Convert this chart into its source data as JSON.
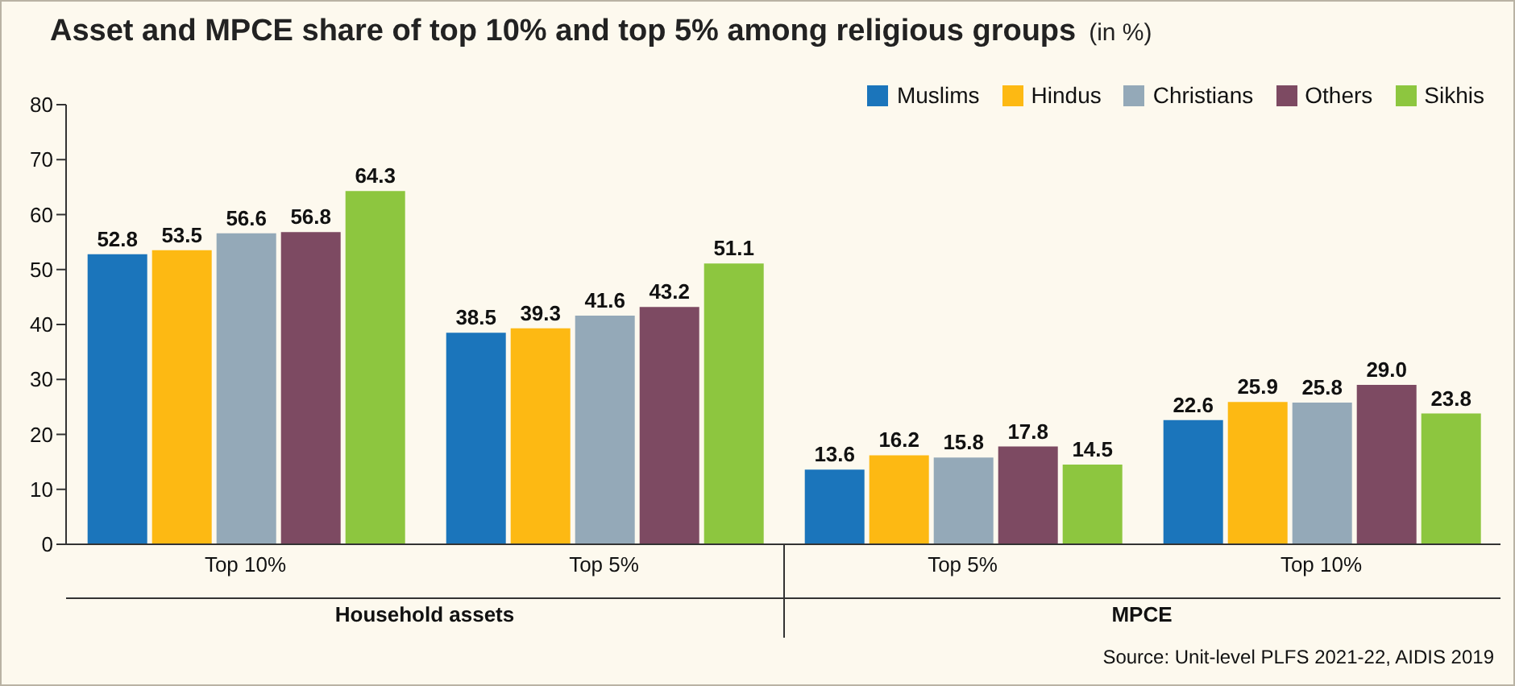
{
  "chart_data": {
    "type": "bar",
    "title": "Asset and MPCE share of top 10% and top 5% among religious groups",
    "subtitle": "(in %)",
    "categories": [
      "Top 10%",
      "Top 5%",
      "Top 5%",
      "Top 10%"
    ],
    "series": [
      {
        "name": "Muslims",
        "color": "#1b75bb",
        "values": [
          52.8,
          38.5,
          13.6,
          22.6
        ],
        "value_labels": [
          "52.8",
          "38.5",
          "13.6",
          "22.6"
        ]
      },
      {
        "name": "Hindus",
        "color": "#fdb913",
        "values": [
          53.5,
          39.3,
          16.2,
          25.9
        ],
        "value_labels": [
          "53.5",
          "39.3",
          "16.2",
          "25.9"
        ]
      },
      {
        "name": "Christians",
        "color": "#94a9b8",
        "values": [
          56.6,
          41.6,
          15.8,
          25.8
        ],
        "value_labels": [
          "56.6",
          "41.6",
          "15.8",
          "25.8"
        ]
      },
      {
        "name": "Others",
        "color": "#7d4a62",
        "values": [
          56.8,
          43.2,
          17.8,
          29.0
        ],
        "value_labels": [
          "56.8",
          "43.2",
          "17.8",
          "29.0"
        ]
      },
      {
        "name": "Sikhis",
        "color": "#8dc63f",
        "values": [
          64.3,
          51.1,
          14.5,
          23.8
        ],
        "value_labels": [
          "64.3",
          "51.1",
          "14.5",
          "23.8"
        ]
      }
    ],
    "ylim": [
      0,
      80
    ],
    "yticks": [
      0,
      10,
      20,
      30,
      40,
      50,
      60,
      70,
      80
    ],
    "grid": false,
    "legend": "top right",
    "annotations": [
      "Household assets",
      "MPCE",
      "Source: Unit-level PLFS 2021-22, AIDIS 2019"
    ]
  }
}
